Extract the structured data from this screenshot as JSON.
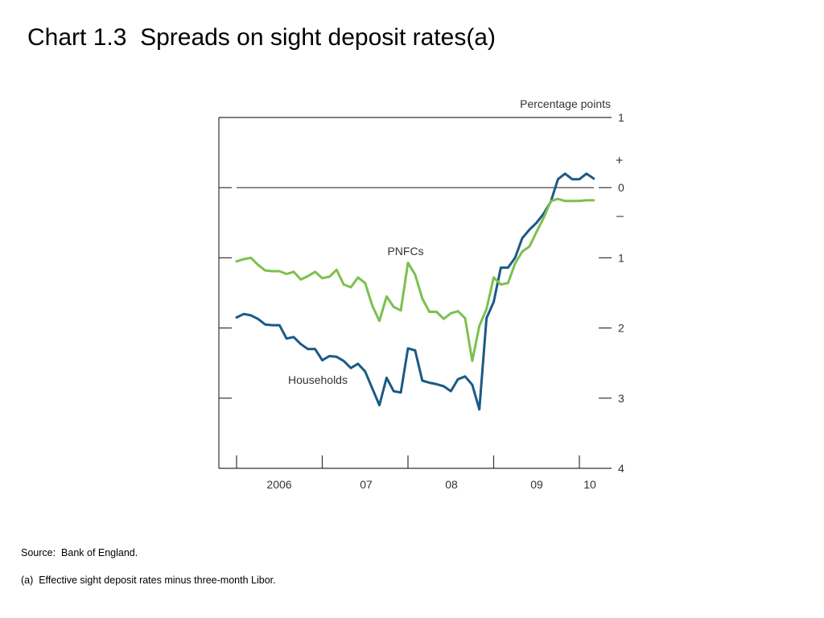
{
  "slide": {
    "title": "Chart 1.3  Spreads on sight deposit rates(a)",
    "source": "Source:  Bank of England.",
    "footnote": "(a)  Effective sight deposit rates minus three-month Libor."
  },
  "colors": {
    "households": "#1a5a86",
    "pnfcs": "#7cc04e",
    "axis": "#333333"
  },
  "chart_data": {
    "type": "line",
    "title": "",
    "xlabel": "",
    "ylabel": "Percentage points",
    "x_tick_labels": [
      {
        "label": "2006",
        "year": 2006
      },
      {
        "label": "07",
        "year": 2007
      },
      {
        "label": "08",
        "year": 2008
      },
      {
        "label": "09",
        "year": 2009
      },
      {
        "label": "10",
        "year": 2010
      }
    ],
    "x_year_boundaries": [
      2006,
      2007,
      2008,
      2009,
      2010
    ],
    "xlim": [
      "2006-01",
      "2010-03"
    ],
    "y_tick_labels": [
      "1",
      "0",
      "1",
      "2",
      "3",
      "4"
    ],
    "y_tick_values": [
      1,
      0,
      -1,
      -2,
      -3,
      -4
    ],
    "ylim": [
      -4,
      1
    ],
    "sign_markers": [
      "+",
      "–"
    ],
    "zero_line": true,
    "grid": false,
    "legend": "inline labels",
    "x_months": [
      "2006-01",
      "2006-02",
      "2006-03",
      "2006-04",
      "2006-05",
      "2006-06",
      "2006-07",
      "2006-08",
      "2006-09",
      "2006-10",
      "2006-11",
      "2006-12",
      "2007-01",
      "2007-02",
      "2007-03",
      "2007-04",
      "2007-05",
      "2007-06",
      "2007-07",
      "2007-08",
      "2007-09",
      "2007-10",
      "2007-11",
      "2007-12",
      "2008-01",
      "2008-02",
      "2008-03",
      "2008-04",
      "2008-05",
      "2008-06",
      "2008-07",
      "2008-08",
      "2008-09",
      "2008-10",
      "2008-11",
      "2008-12",
      "2009-01",
      "2009-02",
      "2009-03",
      "2009-04",
      "2009-05",
      "2009-06",
      "2009-07",
      "2009-08",
      "2009-09",
      "2009-10",
      "2009-11",
      "2009-12",
      "2010-01",
      "2010-02",
      "2010-03"
    ],
    "series": [
      {
        "name": "Households",
        "color_key": "households",
        "values": [
          -1.85,
          -1.8,
          -1.82,
          -1.87,
          -1.95,
          -1.96,
          -1.96,
          -2.15,
          -2.13,
          -2.23,
          -2.3,
          -2.3,
          -2.46,
          -2.4,
          -2.41,
          -2.47,
          -2.57,
          -2.51,
          -2.62,
          -2.86,
          -3.1,
          -2.71,
          -2.9,
          -2.92,
          -2.29,
          -2.32,
          -2.75,
          -2.78,
          -2.8,
          -2.83,
          -2.9,
          -2.73,
          -2.69,
          -2.81,
          -3.16,
          -1.86,
          -1.63,
          -1.14,
          -1.14,
          -1.0,
          -0.72,
          -0.6,
          -0.5,
          -0.37,
          -0.2,
          0.12,
          0.2,
          0.12,
          0.12,
          0.2,
          0.13
        ]
      },
      {
        "name": "PNFCs",
        "color_key": "pnfcs",
        "values": [
          -1.05,
          -1.02,
          -1.0,
          -1.1,
          -1.18,
          -1.19,
          -1.19,
          -1.23,
          -1.2,
          -1.31,
          -1.26,
          -1.2,
          -1.29,
          -1.27,
          -1.17,
          -1.38,
          -1.42,
          -1.28,
          -1.36,
          -1.68,
          -1.9,
          -1.55,
          -1.7,
          -1.75,
          -1.07,
          -1.24,
          -1.58,
          -1.77,
          -1.77,
          -1.87,
          -1.79,
          -1.76,
          -1.86,
          -2.47,
          -1.97,
          -1.73,
          -1.28,
          -1.38,
          -1.36,
          -1.08,
          -0.91,
          -0.84,
          -0.63,
          -0.43,
          -0.19,
          -0.16,
          -0.19,
          -0.19,
          -0.19,
          -0.18,
          -0.18
        ]
      }
    ]
  }
}
